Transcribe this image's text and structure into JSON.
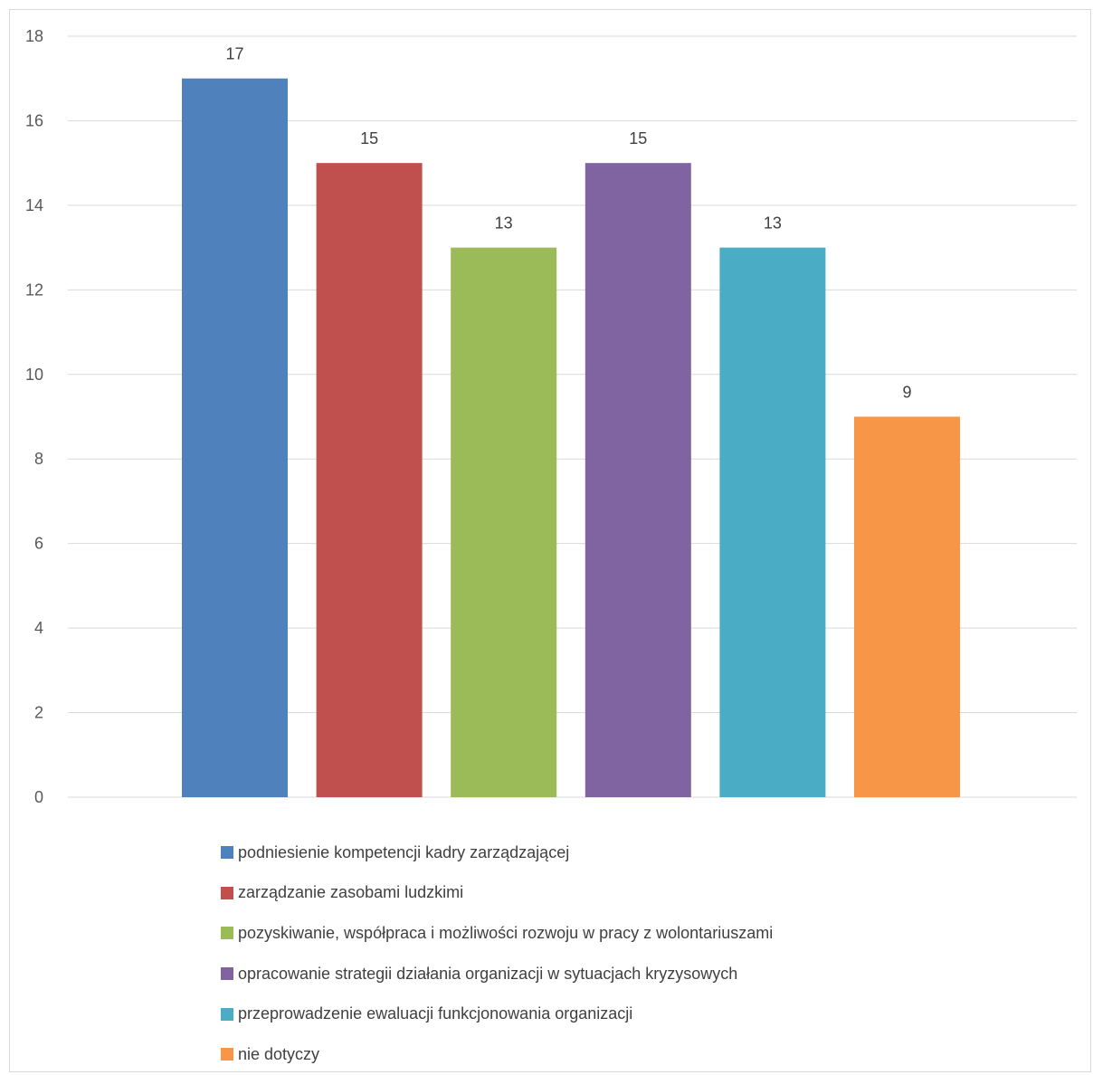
{
  "chart_data": {
    "type": "bar",
    "categories": [
      "podniesienie kompetencji kadry zarządzającej",
      "zarządzanie zasobami ludzkimi",
      "pozyskiwanie, współpraca i możliwości rozwoju w pracy z wolontariuszami",
      "opracowanie strategii działania organizacji w sytuacjach kryzysowych",
      "przeprowadzenie ewaluacji funkcjonowania organizacji",
      "nie dotyczy"
    ],
    "values": [
      17,
      15,
      13,
      15,
      13,
      9
    ],
    "colors": [
      "#4f81bd",
      "#c0504d",
      "#9bbb59",
      "#8064a2",
      "#4bacc6",
      "#f79646"
    ],
    "ylim": [
      0,
      18
    ],
    "yticks": [
      0,
      2,
      4,
      6,
      8,
      10,
      12,
      14,
      16,
      18
    ],
    "grid": true,
    "legend_position": "bottom",
    "data_labels": true
  }
}
